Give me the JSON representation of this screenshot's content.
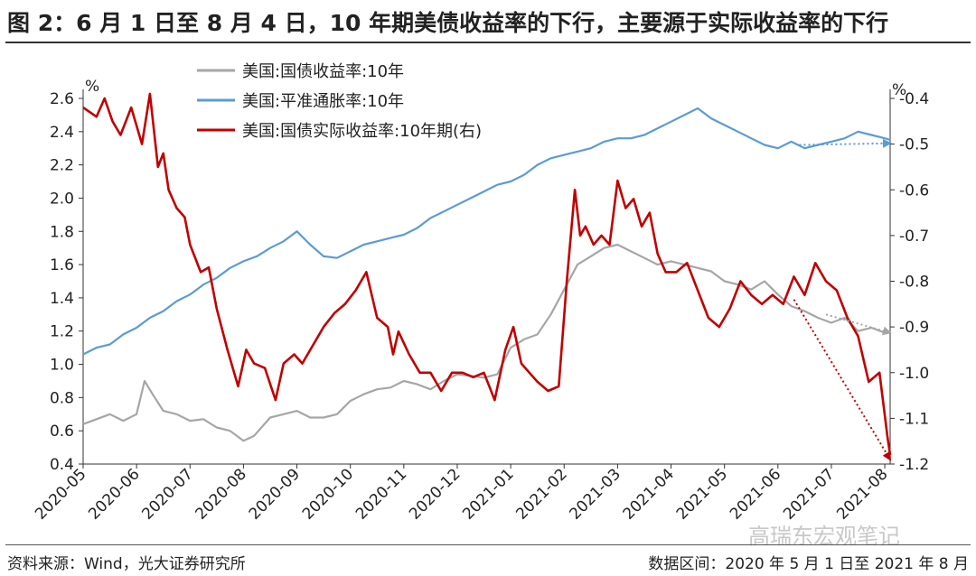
{
  "title": "图 2：6 月 1 日至 8 月 4 日，10 年期美债收益率的下行，主要源于实际收益率的下行",
  "footer": {
    "source": "资料来源：Wind，光大证券研究所",
    "range": "数据区间：2020 年 5 月 1 日至 2021 年 8 月",
    "watermark": "高瑞东宏观笔记"
  },
  "chart_data": {
    "type": "line",
    "title": "",
    "xlabel": "",
    "ylabel_left": "%",
    "ylabel_right": "%",
    "y_left_lim": [
      0.4,
      2.6
    ],
    "y_right_lim": [
      -1.2,
      -0.4
    ],
    "y_left_ticks": [
      "2.6",
      "2.4",
      "2.2",
      "2.0",
      "1.8",
      "1.6",
      "1.4",
      "1.2",
      "1.0",
      "0.8",
      "0.6",
      "0.4"
    ],
    "y_right_ticks": [
      "-0.4",
      "-0.5",
      "-0.6",
      "-0.7",
      "-0.8",
      "-0.9",
      "-1.0",
      "-1.1",
      "-1.2"
    ],
    "x_tick_labels": [
      "2020-05",
      "2020-06",
      "2020-07",
      "2020-08",
      "2020-09",
      "2020-10",
      "2020-11",
      "2020-12",
      "2021-01",
      "2021-02",
      "2021-03",
      "2021-04",
      "2021-05",
      "2021-06",
      "2021-07",
      "2021-08"
    ],
    "legend": [
      "美国:国债收益率:10年",
      "美国:平准通胀率:10年",
      "美国:国债实际收益率:10年期(右)"
    ],
    "series": [
      {
        "name": "美国:国债收益率:10年",
        "axis": "left",
        "color": "#a6a6a6",
        "x": [
          0,
          0.25,
          0.5,
          0.75,
          1,
          1.15,
          1.3,
          1.5,
          1.75,
          2,
          2.25,
          2.5,
          2.75,
          3,
          3.2,
          3.5,
          3.75,
          4,
          4.25,
          4.5,
          4.75,
          5,
          5.25,
          5.5,
          5.75,
          6,
          6.25,
          6.5,
          6.75,
          7,
          7.25,
          7.5,
          7.75,
          8,
          8.25,
          8.5,
          8.75,
          9,
          9.25,
          9.5,
          9.75,
          10,
          10.25,
          10.5,
          10.75,
          11,
          11.25,
          11.5,
          11.75,
          12,
          12.25,
          12.5,
          12.75,
          13,
          13.25,
          13.5,
          13.75,
          14,
          14.25,
          14.5,
          14.75,
          15,
          15.1
        ],
        "values": [
          0.64,
          0.67,
          0.7,
          0.66,
          0.7,
          0.9,
          0.82,
          0.72,
          0.7,
          0.66,
          0.67,
          0.62,
          0.6,
          0.54,
          0.57,
          0.68,
          0.7,
          0.72,
          0.68,
          0.68,
          0.7,
          0.78,
          0.82,
          0.85,
          0.86,
          0.9,
          0.88,
          0.85,
          0.9,
          0.94,
          0.93,
          0.92,
          0.94,
          1.1,
          1.15,
          1.18,
          1.3,
          1.45,
          1.6,
          1.65,
          1.7,
          1.72,
          1.68,
          1.64,
          1.6,
          1.62,
          1.6,
          1.58,
          1.56,
          1.5,
          1.48,
          1.45,
          1.5,
          1.42,
          1.35,
          1.32,
          1.28,
          1.25,
          1.28,
          1.2,
          1.22,
          1.19,
          1.2
        ]
      },
      {
        "name": "美国:平准通胀率:10年",
        "axis": "left",
        "color": "#5b9bd5",
        "x": [
          0,
          0.25,
          0.5,
          0.75,
          1,
          1.25,
          1.5,
          1.75,
          2,
          2.25,
          2.5,
          2.75,
          3,
          3.25,
          3.5,
          3.75,
          4,
          4.25,
          4.5,
          4.75,
          5,
          5.25,
          5.5,
          5.75,
          6,
          6.25,
          6.5,
          6.75,
          7,
          7.25,
          7.5,
          7.75,
          8,
          8.25,
          8.5,
          8.75,
          9,
          9.25,
          9.5,
          9.75,
          10,
          10.25,
          10.5,
          10.75,
          11,
          11.25,
          11.5,
          11.75,
          12,
          12.25,
          12.5,
          12.75,
          13,
          13.25,
          13.5,
          13.75,
          14,
          14.25,
          14.5,
          14.75,
          15,
          15.1
        ],
        "values": [
          1.06,
          1.1,
          1.12,
          1.18,
          1.22,
          1.28,
          1.32,
          1.38,
          1.42,
          1.48,
          1.52,
          1.58,
          1.62,
          1.65,
          1.7,
          1.74,
          1.8,
          1.72,
          1.65,
          1.64,
          1.68,
          1.72,
          1.74,
          1.76,
          1.78,
          1.82,
          1.88,
          1.92,
          1.96,
          2.0,
          2.04,
          2.08,
          2.1,
          2.14,
          2.2,
          2.24,
          2.26,
          2.28,
          2.3,
          2.34,
          2.36,
          2.36,
          2.38,
          2.42,
          2.46,
          2.5,
          2.54,
          2.48,
          2.44,
          2.4,
          2.36,
          2.32,
          2.3,
          2.34,
          2.3,
          2.32,
          2.34,
          2.36,
          2.4,
          2.38,
          2.36,
          2.35
        ]
      },
      {
        "name": "美国:国债实际收益率:10年期(右)",
        "axis": "right",
        "color": "#c00000",
        "x": [
          0,
          0.25,
          0.4,
          0.55,
          0.7,
          0.9,
          1.1,
          1.25,
          1.4,
          1.5,
          1.6,
          1.75,
          1.9,
          2,
          2.2,
          2.35,
          2.5,
          2.7,
          2.9,
          3.05,
          3.2,
          3.4,
          3.6,
          3.75,
          3.95,
          4.1,
          4.3,
          4.5,
          4.7,
          4.9,
          5.1,
          5.3,
          5.5,
          5.7,
          5.8,
          5.9,
          6.1,
          6.3,
          6.5,
          6.7,
          6.9,
          7.1,
          7.3,
          7.5,
          7.7,
          7.9,
          8.05,
          8.2,
          8.35,
          8.5,
          8.7,
          8.9,
          9.05,
          9.2,
          9.3,
          9.4,
          9.55,
          9.7,
          9.85,
          10,
          10.15,
          10.3,
          10.45,
          10.6,
          10.75,
          10.9,
          11.1,
          11.3,
          11.5,
          11.7,
          11.9,
          12.1,
          12.3,
          12.5,
          12.7,
          12.9,
          13.1,
          13.3,
          13.5,
          13.7,
          13.9,
          14.1,
          14.3,
          14.5,
          14.7,
          14.9,
          15.05,
          15.1
        ],
        "values": [
          -0.42,
          -0.44,
          -0.4,
          -0.45,
          -0.48,
          -0.42,
          -0.5,
          -0.39,
          -0.55,
          -0.52,
          -0.6,
          -0.64,
          -0.66,
          -0.72,
          -0.78,
          -0.77,
          -0.86,
          -0.95,
          -1.03,
          -0.95,
          -0.98,
          -0.99,
          -1.06,
          -0.98,
          -0.96,
          -0.98,
          -0.94,
          -0.9,
          -0.87,
          -0.85,
          -0.82,
          -0.78,
          -0.88,
          -0.9,
          -0.96,
          -0.91,
          -0.96,
          -1.0,
          -1.0,
          -1.04,
          -1.0,
          -1.0,
          -1.01,
          -1.0,
          -1.06,
          -0.95,
          -0.9,
          -0.98,
          -1.0,
          -1.02,
          -1.04,
          -1.03,
          -0.8,
          -0.6,
          -0.7,
          -0.68,
          -0.72,
          -0.7,
          -0.72,
          -0.58,
          -0.64,
          -0.62,
          -0.68,
          -0.65,
          -0.74,
          -0.78,
          -0.78,
          -0.76,
          -0.82,
          -0.88,
          -0.9,
          -0.86,
          -0.8,
          -0.83,
          -0.85,
          -0.83,
          -0.85,
          -0.79,
          -0.83,
          -0.76,
          -0.8,
          -0.82,
          -0.88,
          -0.92,
          -1.02,
          -1.0,
          -1.14,
          -1.18
        ]
      }
    ],
    "annotations": [
      {
        "type": "dotted-arrow",
        "series": "美国:国债实际收益率:10年期(右)",
        "from_x": 13.3,
        "from_y": -0.84,
        "to_x": 15.1,
        "to_y": -1.19,
        "axis": "right",
        "color": "#c00000"
      },
      {
        "type": "dotted-arrow",
        "series": "美国:国债收益率:10年",
        "from_x": 13.9,
        "from_y": 1.3,
        "to_x": 15.1,
        "to_y": 1.19,
        "axis": "left",
        "color": "#a6a6a6"
      },
      {
        "type": "dotted-arrow",
        "series": "美国:平准通胀率:10年",
        "from_x": 13.4,
        "from_y": 2.32,
        "to_x": 15.1,
        "to_y": 2.33,
        "axis": "left",
        "color": "#5b9bd5"
      }
    ]
  }
}
